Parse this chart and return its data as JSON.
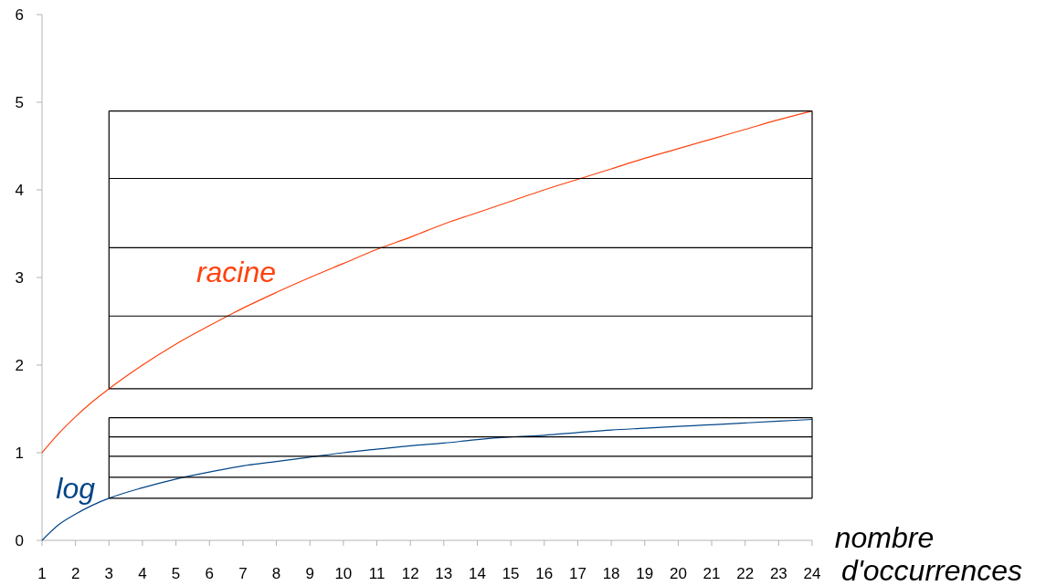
{
  "chart_data": {
    "type": "line",
    "xlabel": "nombre d'occurrences",
    "xlim": [
      1,
      24
    ],
    "xticks": [
      1,
      2,
      3,
      4,
      5,
      6,
      7,
      8,
      9,
      10,
      11,
      12,
      13,
      14,
      15,
      16,
      17,
      18,
      19,
      20,
      21,
      22,
      23,
      24
    ],
    "ylim": [
      0,
      6
    ],
    "yticks": [
      0,
      1,
      2,
      3,
      4,
      5,
      6
    ],
    "grid": false,
    "legend": false,
    "marker": "none",
    "line_style": "solid",
    "series": [
      {
        "name": "racine",
        "color": "#ff420e",
        "x": [
          1,
          1.5,
          2,
          2.5,
          3,
          4,
          5,
          6,
          7,
          8,
          9,
          10,
          11,
          12,
          13,
          14,
          15,
          16,
          17,
          18,
          19,
          20,
          21,
          22,
          23,
          24
        ],
        "values": [
          1,
          1.22,
          1.41,
          1.58,
          1.73,
          2,
          2.24,
          2.45,
          2.65,
          2.83,
          3,
          3.16,
          3.32,
          3.46,
          3.61,
          3.74,
          3.87,
          4,
          4.12,
          4.24,
          4.36,
          4.47,
          4.58,
          4.69,
          4.8,
          4.9
        ]
      },
      {
        "name": "log",
        "color": "#004586",
        "x": [
          1,
          1.5,
          2,
          2.5,
          3,
          4,
          5,
          6,
          7,
          8,
          9,
          10,
          11,
          12,
          13,
          14,
          15,
          16,
          17,
          18,
          19,
          20,
          21,
          22,
          23,
          24
        ],
        "values": [
          0,
          0.18,
          0.3,
          0.4,
          0.48,
          0.6,
          0.7,
          0.78,
          0.85,
          0.9,
          0.95,
          1,
          1.04,
          1.08,
          1.11,
          1.15,
          1.18,
          1.2,
          1.23,
          1.26,
          1.28,
          1.3,
          1.32,
          1.34,
          1.36,
          1.38
        ]
      },
      {
        "color": "#000000",
        "x": [
          3,
          24
        ],
        "values": [
          1.73,
          1.73
        ]
      },
      {
        "color": "#000000",
        "x": [
          3,
          24
        ],
        "values": [
          2.56,
          2.56
        ]
      },
      {
        "color": "#000000",
        "x": [
          3,
          24
        ],
        "values": [
          3.34,
          3.34
        ]
      },
      {
        "color": "#000000",
        "x": [
          3,
          24
        ],
        "values": [
          4.13,
          4.13
        ]
      },
      {
        "color": "#000000",
        "x": [
          3,
          24
        ],
        "values": [
          4.9,
          4.9
        ]
      },
      {
        "color": "#000000",
        "x": [
          3,
          24
        ],
        "values": [
          0.48,
          0.48
        ]
      },
      {
        "color": "#000000",
        "x": [
          3,
          24
        ],
        "values": [
          0.72,
          0.72
        ]
      },
      {
        "color": "#000000",
        "x": [
          3,
          24
        ],
        "values": [
          0.96,
          0.96
        ]
      },
      {
        "color": "#000000",
        "x": [
          3,
          24
        ],
        "values": [
          1.18,
          1.18
        ]
      },
      {
        "color": "#000000",
        "x": [
          3,
          24
        ],
        "values": [
          1.4,
          1.4
        ]
      }
    ]
  }
}
